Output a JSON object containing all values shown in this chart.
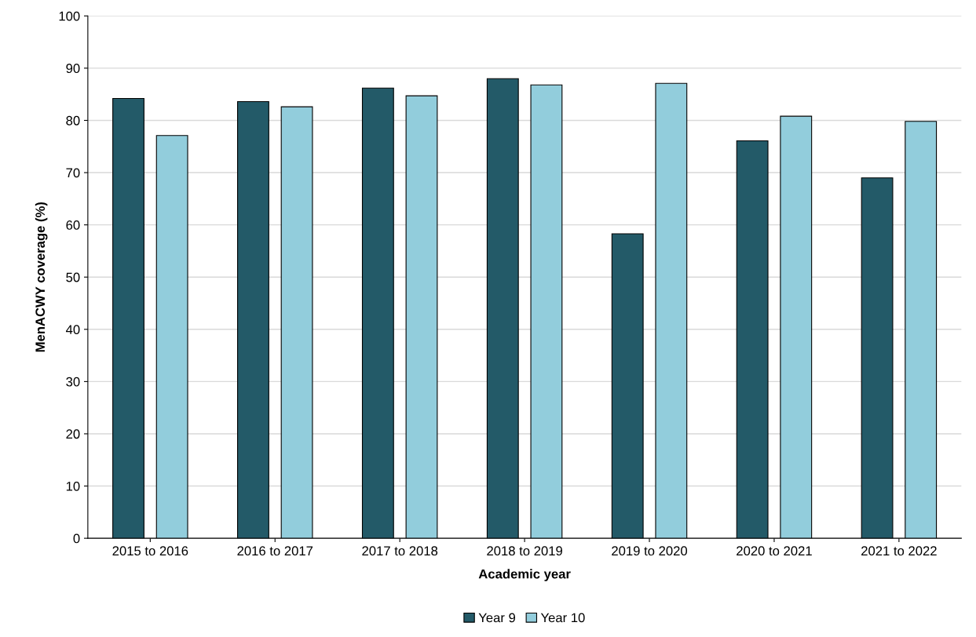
{
  "chart_data": {
    "type": "bar",
    "xlabel": "Academic year",
    "ylabel": "MenACWY coverage (%)",
    "categories": [
      "2015 to 2016",
      "2016 to 2017",
      "2017 to 2018",
      "2018 to 2019",
      "2019 to 2020",
      "2020 to 2021",
      "2021 to 2022"
    ],
    "series": [
      {
        "name": "Year 9",
        "color": "#235a68",
        "values": [
          84.2,
          83.6,
          86.2,
          88.0,
          58.3,
          76.1,
          69.0
        ]
      },
      {
        "name": "Year 10",
        "color": "#92cddc",
        "values": [
          77.1,
          82.6,
          84.7,
          86.8,
          87.1,
          80.8,
          79.8
        ]
      }
    ],
    "ylim": [
      0,
      100
    ],
    "yticks": [
      0,
      10,
      20,
      30,
      40,
      50,
      60,
      70,
      80,
      90,
      100
    ],
    "grid": "y",
    "legend": "bottom"
  }
}
